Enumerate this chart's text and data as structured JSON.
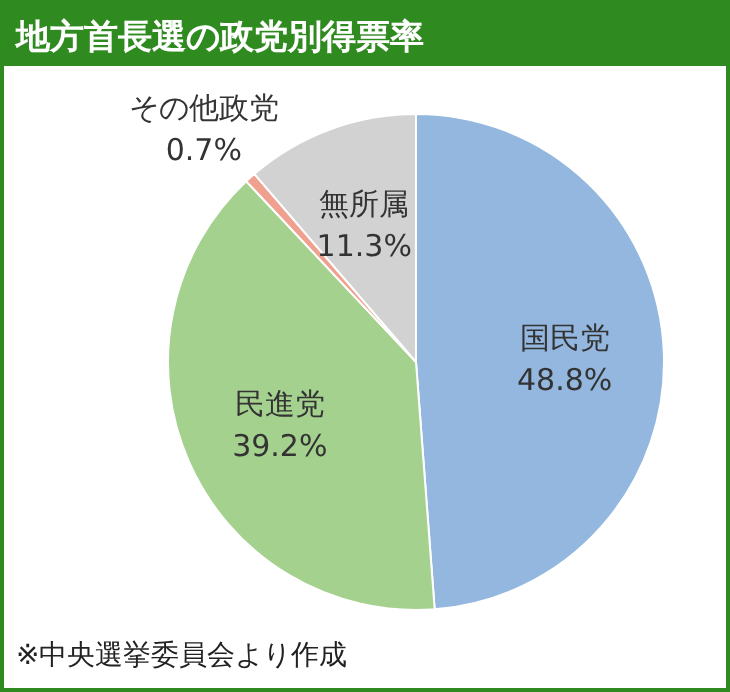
{
  "chart_data": {
    "type": "pie",
    "title": "地方首長選の政党別得票率",
    "categories": [
      "国民党",
      "民進党",
      "その他政党",
      "無所属"
    ],
    "values": [
      48.8,
      39.2,
      0.7,
      11.3
    ],
    "value_labels": [
      "48.8%",
      "39.2%",
      "0.7%",
      "11.3%"
    ],
    "colors": [
      "#93b7de",
      "#a5d18f",
      "#f0a08e",
      "#d2d2d2"
    ],
    "annotations": [
      "※中央選挙委員会より作成"
    ]
  }
}
